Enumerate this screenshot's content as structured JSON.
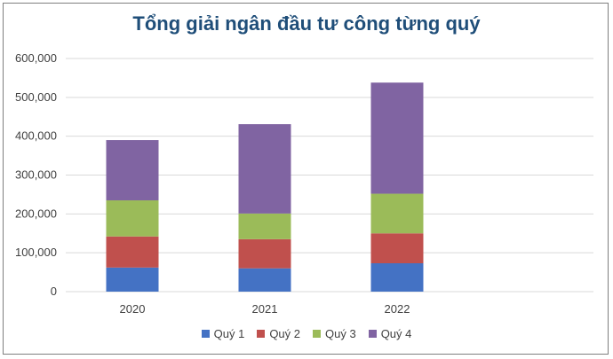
{
  "chart_data": {
    "type": "bar",
    "stacked": true,
    "title": "Tổng giải ngân đầu tư công từng quý",
    "xlabel": "",
    "ylabel": "",
    "categories": [
      "2020",
      "2021",
      "2022"
    ],
    "ylim": [
      0,
      600000
    ],
    "yticks": [
      0,
      100000,
      200000,
      300000,
      400000,
      500000,
      600000
    ],
    "ytick_labels": [
      "0",
      "100,000",
      "200,000",
      "300,000",
      "400,000",
      "500,000",
      "600,000"
    ],
    "grid": true,
    "legend_position": "bottom",
    "series": [
      {
        "name": "Quý 1",
        "color": "#4472c4",
        "values": [
          62000,
          60000,
          73000
        ]
      },
      {
        "name": "Quý 2",
        "color": "#c0504d",
        "values": [
          80000,
          75000,
          77000
        ]
      },
      {
        "name": "Quý 3",
        "color": "#9bbb59",
        "values": [
          93000,
          66000,
          102000
        ]
      },
      {
        "name": "Quý 4",
        "color": "#8064a2",
        "values": [
          155000,
          230000,
          286000
        ]
      }
    ]
  }
}
